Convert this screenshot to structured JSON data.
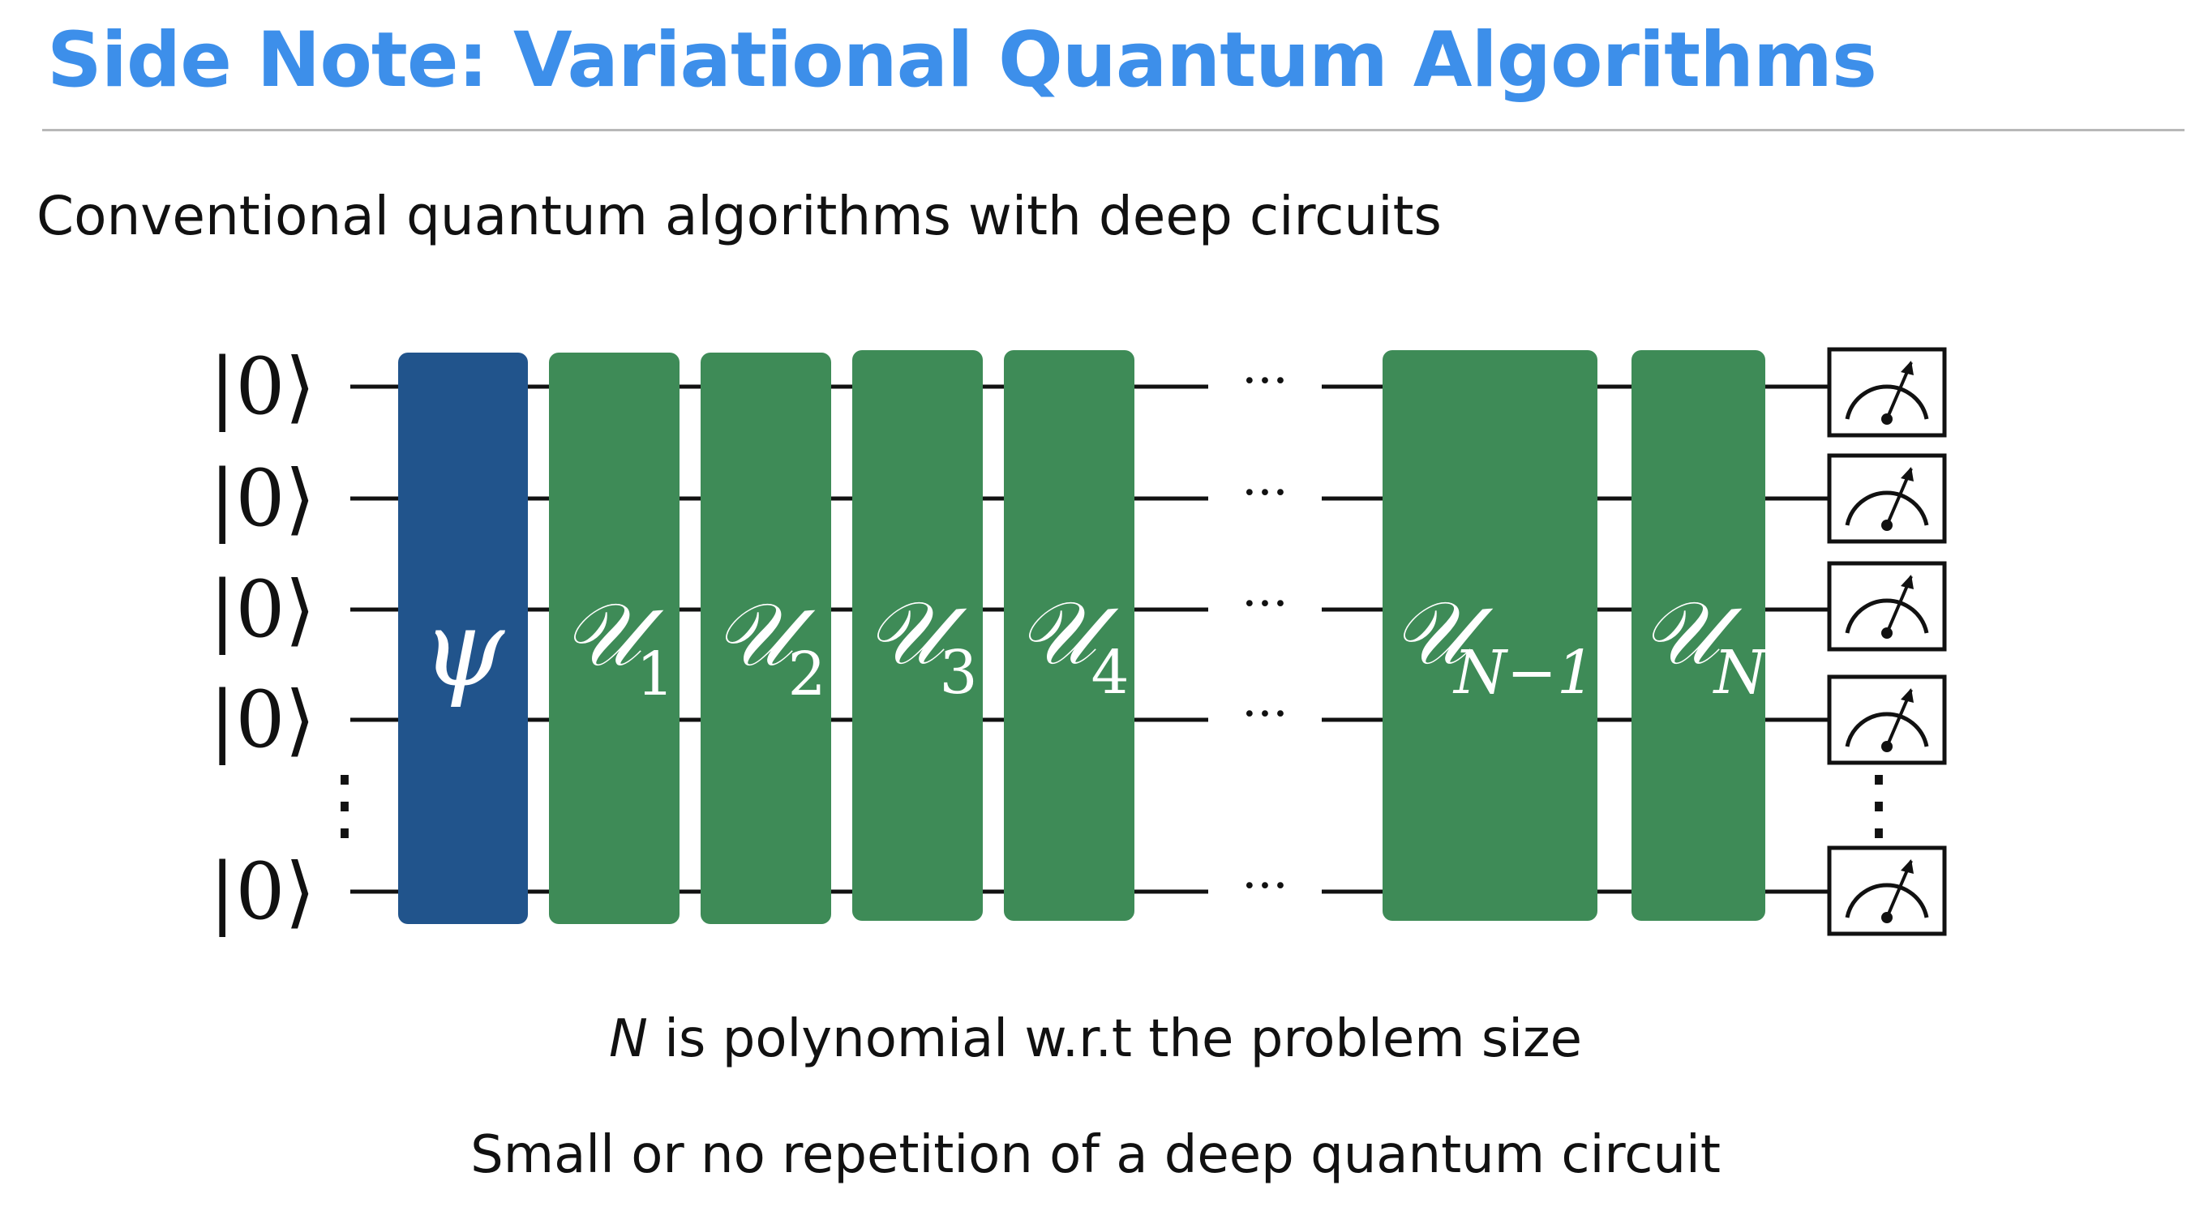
{
  "slide": {
    "title": "Side Note: Variational Quantum Algorithms",
    "subtitle": "Conventional quantum algorithms with deep circuits",
    "note_1_var": "N",
    "note_1_rest": " is polynomial w.r.t the problem size",
    "note_2": "Small or no repetition of a deep quantum circuit"
  },
  "colors": {
    "title": "#3d8fea",
    "psi_gate": "#21548c",
    "u_gate": "#3e8b57",
    "wire": "#111111"
  },
  "circuit": {
    "qubit_label": "|0⟩",
    "qubit_labels": [
      "|0⟩",
      "|0⟩",
      "|0⟩",
      "|0⟩",
      "|0⟩"
    ],
    "qubit_ellipsis": "⋮",
    "wire_ellipsis": "···",
    "measure_ellipsis": "⋮",
    "psi_gate": {
      "symbol": "ψ"
    },
    "u_gates": [
      {
        "symbol": "𝒰",
        "subscript": "1"
      },
      {
        "symbol": "𝒰",
        "subscript": "2"
      },
      {
        "symbol": "𝒰",
        "subscript": "3"
      },
      {
        "symbol": "𝒰",
        "subscript": "4"
      },
      {
        "symbol": "𝒰",
        "subscript": "N−1"
      },
      {
        "symbol": "𝒰",
        "subscript": "N"
      }
    ],
    "measurements": 5
  }
}
